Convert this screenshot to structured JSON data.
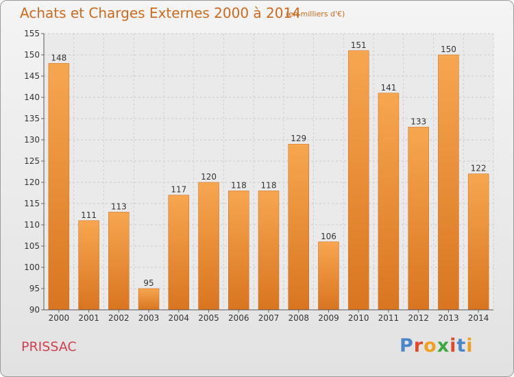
{
  "header": {
    "title": "Achats et Charges Externes 2000 à 2014",
    "subtitle": "(en milliers d'€)"
  },
  "footer": {
    "place": "PRISSAC",
    "logo_text": "Proxiti"
  },
  "colors": {
    "bar_light": "#f7a650",
    "bar_dark": "#d97520",
    "title": "#cc6a1e",
    "place": "#d0404e"
  },
  "chart_data": {
    "type": "bar",
    "categories": [
      "2000",
      "2001",
      "2002",
      "2003",
      "2004",
      "2005",
      "2006",
      "2007",
      "2008",
      "2009",
      "2010",
      "2011",
      "2012",
      "2013",
      "2014"
    ],
    "values": [
      148,
      111,
      113,
      95,
      117,
      120,
      118,
      118,
      129,
      106,
      151,
      141,
      133,
      150,
      122
    ],
    "ylim": [
      90,
      155
    ],
    "yticks": [
      90,
      95,
      100,
      105,
      110,
      115,
      120,
      125,
      130,
      135,
      140,
      145,
      150,
      155
    ],
    "grid": true,
    "grid_axis": "y",
    "legend": "none",
    "data_labels": true
  }
}
